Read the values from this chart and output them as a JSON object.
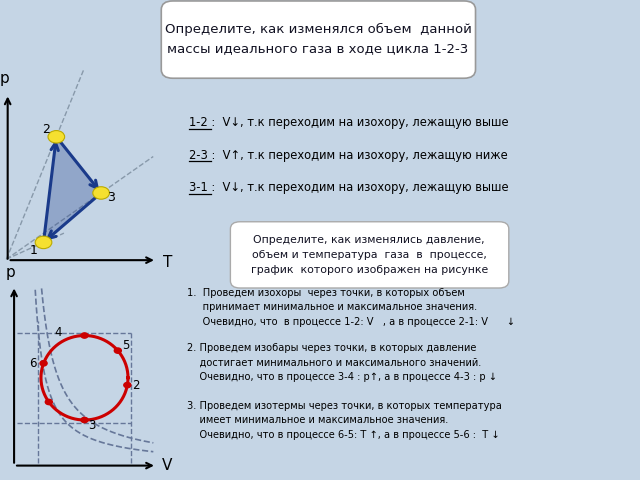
{
  "bg_color": "#c5d5e5",
  "title_box_text": "Определите, как изменялся объем  данной\nмассы идеального газа в ходе цикла 1-2-3",
  "annotations": [
    "1-2 :  V↓, т.к переходим на изохору, лежащую выше",
    "2-3 :  V↑, т.к переходим на изохору, лежащую ниже",
    "3-1 :  V↓, т.к переходим на изохору, лежащую выше"
  ],
  "ann_prefixes": [
    "1-2 :",
    "2-3 :",
    "3-1 :"
  ],
  "second_box_text": "Определите, как изменялись давление,\nобъем и температура  газа  в  процессе,\nграфик  которого изображен на рисунке",
  "bullet1": "1.  Проведем изохоры  через точки, в которых объем\n     принимает минимальное и максимальное значения.\n     Очевидно, что  в процессе 1-2: V   , а в процессе 2-1: V      ↓",
  "bullet2": "2. Проведем изобары через точки, в которых давление\n    достигает минимального и максимального значений.\n    Очевидно, что в процессе 3-4 : p↑, а в процессе 4-3 : р ↓",
  "bullet3": "3. Проведем изотермы через точки, в которых температура\n    имеет минимальное и максимальное значения.\n    Очевидно, что в процессе 6-5: T ↑, а в процессе 5-6 :  T ↓",
  "arrow_color": "#1a3a8a",
  "dot_color": "#f5e030",
  "circle_color": "#cc0000",
  "dashed_color": "#667799",
  "p1": [
    0.068,
    0.495
  ],
  "p2": [
    0.088,
    0.715
  ],
  "p3": [
    0.158,
    0.598
  ]
}
